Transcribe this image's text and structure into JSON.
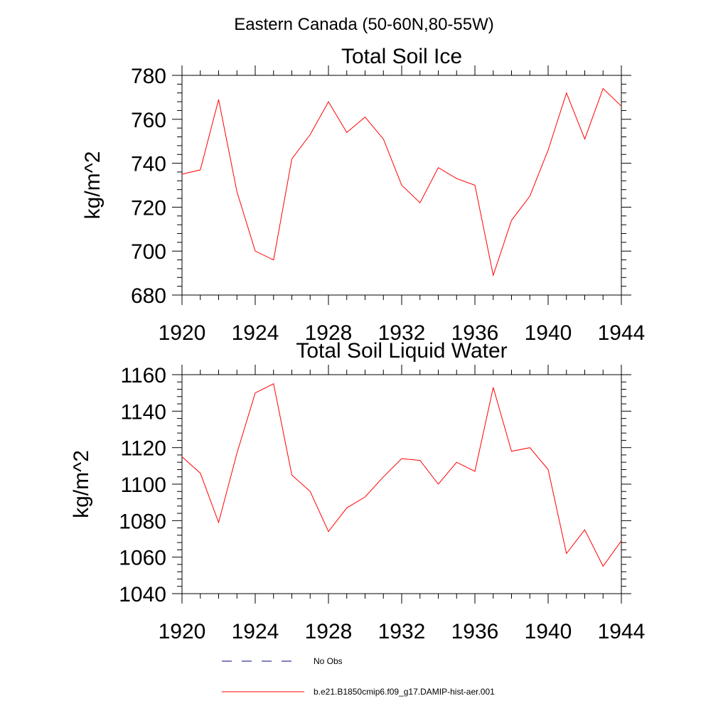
{
  "main_title": "Eastern Canada (50-60N,80-55W)",
  "legend": {
    "entries": [
      {
        "label": "No Obs",
        "color": "#000080",
        "style": "dashed"
      },
      {
        "label": "b.e21.B1850cmip6.f09_g17.DAMIP-hist-aer.001",
        "color": "#ff0000",
        "style": "solid"
      }
    ]
  },
  "chart_data": [
    {
      "type": "line",
      "title": "Total Soil Ice",
      "ylabel": "kg/m^2",
      "xlabel": "",
      "xlim": [
        1920,
        1944
      ],
      "ylim": [
        680,
        780
      ],
      "xticks": [
        1920,
        1924,
        1928,
        1932,
        1936,
        1940,
        1944
      ],
      "yticks": [
        680,
        700,
        720,
        740,
        760,
        780
      ],
      "grid": false,
      "series": [
        {
          "color": "#ff0000",
          "x": [
            1920,
            1921,
            1922,
            1923,
            1924,
            1925,
            1926,
            1927,
            1928,
            1929,
            1930,
            1931,
            1932,
            1933,
            1934,
            1935,
            1936,
            1937,
            1938,
            1939,
            1940,
            1941,
            1942,
            1943,
            1944
          ],
          "values": [
            735,
            737,
            769,
            727,
            700,
            696,
            742,
            753,
            768,
            754,
            761,
            751,
            730,
            722,
            738,
            733,
            730,
            689,
            714,
            725,
            746,
            772,
            751,
            774,
            766
          ]
        }
      ]
    },
    {
      "type": "line",
      "title": "Total Soil Liquid Water",
      "ylabel": "kg/m^2",
      "xlabel": "",
      "xlim": [
        1920,
        1944
      ],
      "ylim": [
        1040,
        1160
      ],
      "xticks": [
        1920,
        1924,
        1928,
        1932,
        1936,
        1940,
        1944
      ],
      "yticks": [
        1040,
        1060,
        1080,
        1100,
        1120,
        1140,
        1160
      ],
      "grid": false,
      "series": [
        {
          "color": "#ff0000",
          "x": [
            1920,
            1921,
            1922,
            1923,
            1924,
            1925,
            1926,
            1927,
            1928,
            1929,
            1930,
            1931,
            1932,
            1933,
            1934,
            1935,
            1936,
            1937,
            1938,
            1939,
            1940,
            1941,
            1942,
            1943,
            1944
          ],
          "values": [
            1115,
            1106,
            1079,
            1117,
            1150,
            1155,
            1105,
            1096,
            1074,
            1087,
            1093,
            1104,
            1114,
            1113,
            1100,
            1112,
            1107,
            1153,
            1118,
            1120,
            1108,
            1062,
            1075,
            1055,
            1069
          ]
        }
      ]
    }
  ]
}
